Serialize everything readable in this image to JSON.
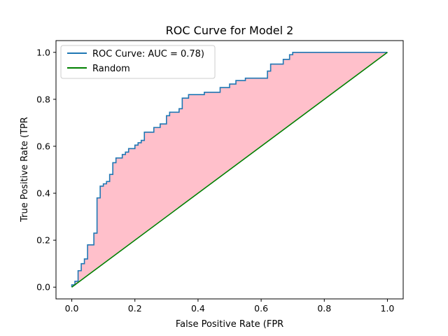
{
  "chart_data": {
    "type": "line",
    "title": "ROC Curve for Model 2",
    "xlabel": "False Positive Rate (FPR",
    "ylabel": "True Positive Rate (TPR",
    "xlim": [
      -0.05,
      1.05
    ],
    "ylim": [
      -0.05,
      1.05
    ],
    "xticks": [
      "0.0",
      "0.2",
      "0.4",
      "0.6",
      "0.8",
      "1.0"
    ],
    "yticks": [
      "0.0",
      "0.2",
      "0.4",
      "0.6",
      "0.8",
      "1.0"
    ],
    "grid": false,
    "legend_position": "top-left",
    "fill_color": "#ffc0cb",
    "series": [
      {
        "name": "ROC Curve: AUC = 0.78)",
        "color": "#1f77b4",
        "x": [
          0.0,
          0.0,
          0.01,
          0.01,
          0.02,
          0.02,
          0.03,
          0.03,
          0.04,
          0.04,
          0.05,
          0.05,
          0.07,
          0.07,
          0.08,
          0.08,
          0.09,
          0.09,
          0.1,
          0.1,
          0.11,
          0.11,
          0.12,
          0.12,
          0.13,
          0.13,
          0.14,
          0.14,
          0.16,
          0.16,
          0.17,
          0.17,
          0.18,
          0.18,
          0.2,
          0.2,
          0.21,
          0.21,
          0.22,
          0.22,
          0.23,
          0.23,
          0.26,
          0.26,
          0.28,
          0.28,
          0.3,
          0.3,
          0.31,
          0.31,
          0.34,
          0.34,
          0.35,
          0.35,
          0.37,
          0.37,
          0.42,
          0.42,
          0.47,
          0.47,
          0.5,
          0.5,
          0.52,
          0.52,
          0.55,
          0.55,
          0.56,
          0.56,
          0.62,
          0.62,
          0.63,
          0.63,
          0.67,
          0.67,
          0.69,
          0.69,
          0.7,
          0.7,
          1.0
        ],
        "y": [
          0.0,
          0.01,
          0.01,
          0.025,
          0.025,
          0.07,
          0.07,
          0.1,
          0.1,
          0.12,
          0.12,
          0.18,
          0.18,
          0.23,
          0.23,
          0.38,
          0.38,
          0.43,
          0.43,
          0.44,
          0.44,
          0.45,
          0.45,
          0.48,
          0.48,
          0.53,
          0.53,
          0.55,
          0.55,
          0.565,
          0.565,
          0.575,
          0.575,
          0.59,
          0.59,
          0.605,
          0.605,
          0.615,
          0.615,
          0.625,
          0.625,
          0.66,
          0.66,
          0.68,
          0.68,
          0.695,
          0.695,
          0.73,
          0.73,
          0.745,
          0.745,
          0.76,
          0.76,
          0.805,
          0.805,
          0.82,
          0.82,
          0.83,
          0.83,
          0.85,
          0.85,
          0.865,
          0.865,
          0.88,
          0.88,
          0.89,
          0.89,
          0.89,
          0.89,
          0.92,
          0.92,
          0.95,
          0.95,
          0.97,
          0.97,
          0.99,
          0.99,
          1.0,
          1.0
        ]
      },
      {
        "name": "Random",
        "color": "#008000",
        "x": [
          0.0,
          1.0
        ],
        "y": [
          0.0,
          1.0
        ]
      }
    ]
  }
}
